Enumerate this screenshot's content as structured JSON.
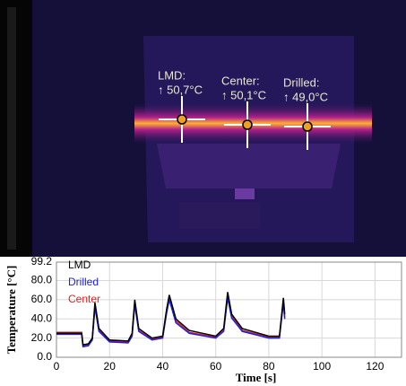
{
  "thermal": {
    "spots": [
      {
        "name": "LMD:",
        "temp": "↑ 50,7°C"
      },
      {
        "name": "Center:",
        "temp": "↑ 50,1°C"
      },
      {
        "name": "Drilled:",
        "temp": "↑ 49,0°C"
      }
    ]
  },
  "chart_data": {
    "type": "line",
    "ylabel": "Temperature [°C]",
    "xlabel": "Time [s]",
    "x": [
      0,
      9.5,
      10,
      12,
      13.5,
      14.5,
      16,
      20,
      27,
      28.5,
      29.5,
      31,
      36,
      40,
      41.5,
      42.5,
      45,
      50,
      60,
      63,
      64.5,
      66,
      70,
      80,
      84,
      85.5,
      86
    ],
    "series": [
      {
        "name": "LMD",
        "color": "#000000",
        "values": [
          25,
          25,
          13,
          14,
          20,
          57,
          30,
          18,
          17,
          25,
          60,
          30,
          20,
          22,
          50,
          65,
          40,
          28,
          22,
          30,
          68,
          45,
          30,
          22,
          22,
          62,
          45
        ]
      },
      {
        "name": "Drilled",
        "color": "#2020e0",
        "values": [
          24,
          24,
          11,
          12,
          18,
          52,
          27,
          16,
          15,
          22,
          55,
          27,
          18,
          20,
          46,
          60,
          36,
          25,
          20,
          27,
          62,
          41,
          27,
          20,
          20,
          57,
          40
        ]
      },
      {
        "name": "Center",
        "color": "#e02020",
        "values": [
          26,
          26,
          12,
          13,
          19,
          54,
          28,
          17,
          16,
          23,
          57,
          28,
          19,
          21,
          48,
          62,
          38,
          26,
          21,
          28,
          64,
          43,
          28,
          21,
          21,
          59,
          42
        ]
      }
    ],
    "xlim": [
      0,
      130
    ],
    "xticks": [
      0,
      20,
      40,
      60,
      80,
      100,
      120
    ],
    "ylim": [
      0,
      99.2
    ],
    "yticks": [
      {
        "value": 0,
        "label": "0.0"
      },
      {
        "value": 20,
        "label": "20.0"
      },
      {
        "value": 40,
        "label": "40.0"
      },
      {
        "value": 60,
        "label": "60.0"
      },
      {
        "value": 80,
        "label": "80.0"
      },
      99.2
    ],
    "grid": true
  }
}
